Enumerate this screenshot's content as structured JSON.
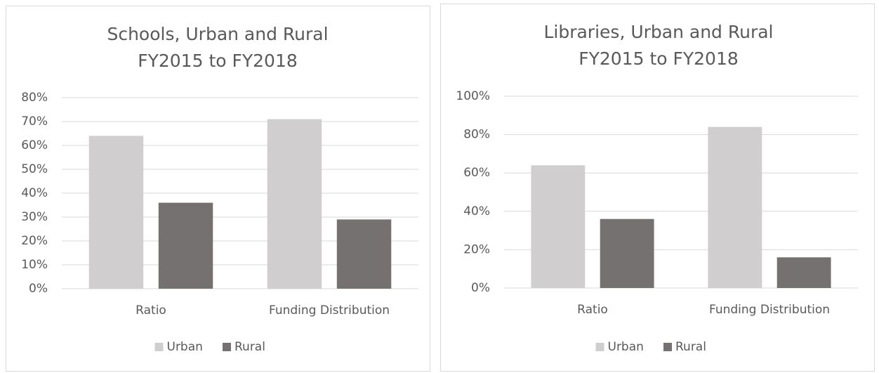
{
  "chart_data": [
    {
      "type": "bar",
      "title": [
        "Schools, Urban and Rural",
        "FY2015 to FY2018"
      ],
      "categories": [
        "Ratio",
        "Funding Distribution"
      ],
      "series": [
        {
          "name": "Urban",
          "color": "#d0cece",
          "values": [
            64,
            71
          ]
        },
        {
          "name": "Rural",
          "color": "#767171",
          "values": [
            36,
            29
          ]
        }
      ],
      "ylim": [
        0,
        80
      ],
      "yticks": [
        {
          "value": 0,
          "label": "0%"
        },
        {
          "value": 10,
          "label": "10%"
        },
        {
          "value": 20,
          "label": "20%"
        },
        {
          "value": 30,
          "label": "30%"
        },
        {
          "value": 40,
          "label": "40%"
        },
        {
          "value": 50,
          "label": "50%"
        },
        {
          "value": 60,
          "label": "60%"
        },
        {
          "value": 70,
          "label": "70%"
        },
        {
          "value": 80,
          "label": "80%"
        }
      ],
      "grid": true,
      "legend": "bottom"
    },
    {
      "type": "bar",
      "title": [
        "Libraries, Urban and Rural",
        "FY2015 to FY2018"
      ],
      "categories": [
        "Ratio",
        "Funding Distribution"
      ],
      "series": [
        {
          "name": "Urban",
          "color": "#d0cece",
          "values": [
            64,
            84
          ]
        },
        {
          "name": "Rural",
          "color": "#767171",
          "values": [
            36,
            16
          ]
        }
      ],
      "ylim": [
        0,
        100
      ],
      "yticks": [
        {
          "value": 0,
          "label": "0%"
        },
        {
          "value": 20,
          "label": "20%"
        },
        {
          "value": 40,
          "label": "40%"
        },
        {
          "value": 60,
          "label": "60%"
        },
        {
          "value": 80,
          "label": "80%"
        },
        {
          "value": 100,
          "label": "100%"
        }
      ],
      "grid": true,
      "legend": "bottom"
    }
  ]
}
